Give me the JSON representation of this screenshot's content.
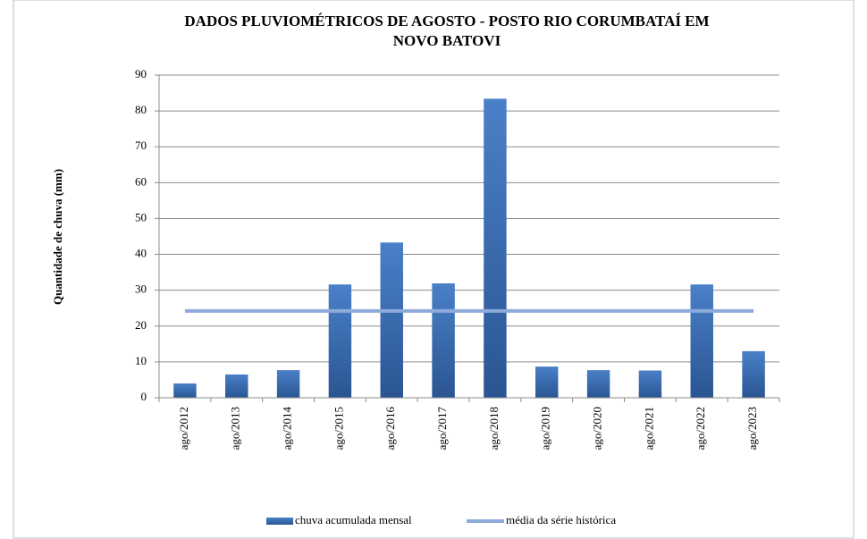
{
  "chart_data": {
    "type": "bar",
    "title": [
      "DADOS PLUVIOMÉTRICOS  DE AGOSTO - POSTO RIO CORUMBATAÍ EM",
      "NOVO BATOVI"
    ],
    "y_label": "Quantidade  de chuva (mm)",
    "categories": [
      "ago/2012",
      "ago/2013",
      "ago/2014",
      "ago/2015",
      "ago/2016",
      "ago/2017",
      "ago/2018",
      "ago/2019",
      "ago/2020",
      "ago/2021",
      "ago/2022",
      "ago/2023"
    ],
    "series": [
      {
        "name": "chuva acumulada mensal",
        "type": "bar",
        "color": "#3a6eb5",
        "values": [
          4,
          6.5,
          7.7,
          31.6,
          43.3,
          31.9,
          83.4,
          8.7,
          7.7,
          7.6,
          31.6,
          13
        ]
      },
      {
        "name": "média da série histórica",
        "type": "line",
        "color": "#8eaadb",
        "values": [
          24.2,
          24.2,
          24.2,
          24.2,
          24.2,
          24.2,
          24.2,
          24.2,
          24.2,
          24.2,
          24.2,
          24.2
        ]
      }
    ],
    "ylim": [
      0,
      90
    ],
    "yticks": [
      0,
      10,
      20,
      30,
      40,
      50,
      60,
      70,
      80,
      90
    ],
    "grid": true,
    "legend": "bottom"
  }
}
